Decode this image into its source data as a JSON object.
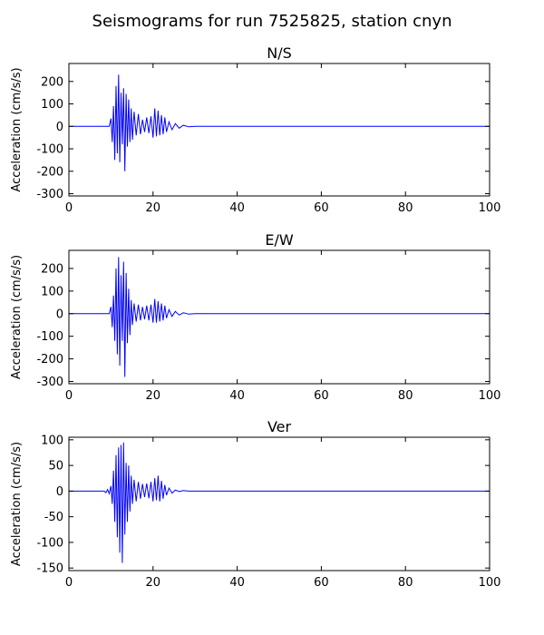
{
  "figure": {
    "title": "Seismograms for run 7525825, station cnyn"
  },
  "chart_data": [
    {
      "type": "line",
      "title": "N/S",
      "xlabel": "",
      "ylabel": "Acceleration (cm/s/s)",
      "xlim": [
        0,
        100
      ],
      "ylim": [
        -310,
        280
      ],
      "xticks": [
        0,
        20,
        40,
        60,
        80,
        100
      ],
      "yticks": [
        -300,
        -200,
        -100,
        0,
        100,
        200
      ],
      "color": "#0000ff",
      "grid": false,
      "series": [
        {
          "x": [
            0,
            9.6,
            10.0,
            10.3,
            10.6,
            10.9,
            11.2,
            11.5,
            11.8,
            12.1,
            12.4,
            12.7,
            13.0,
            13.3,
            13.6,
            13.9,
            14.2,
            14.5,
            14.8,
            15.1,
            15.5,
            16.0,
            16.5,
            17.0,
            17.5,
            18.0,
            18.5,
            19.0,
            19.5,
            20.0,
            20.4,
            20.8,
            21.2,
            21.6,
            22.0,
            22.4,
            22.8,
            23.2,
            23.8,
            24.5,
            25.3,
            26.2,
            27.2,
            28.5,
            30,
            100
          ],
          "y": [
            0,
            0,
            35,
            -70,
            90,
            -150,
            180,
            -120,
            230,
            -160,
            150,
            -80,
            170,
            -200,
            145,
            -90,
            120,
            -70,
            80,
            -60,
            65,
            -40,
            55,
            -35,
            30,
            -25,
            40,
            -30,
            45,
            -50,
            80,
            -45,
            70,
            -40,
            50,
            -35,
            40,
            -25,
            20,
            -15,
            12,
            -8,
            5,
            -2,
            0,
            0
          ]
        }
      ]
    },
    {
      "type": "line",
      "title": "E/W",
      "xlabel": "",
      "ylabel": "Acceleration (cm/s/s)",
      "xlim": [
        0,
        100
      ],
      "ylim": [
        -310,
        280
      ],
      "xticks": [
        0,
        20,
        40,
        60,
        80,
        100
      ],
      "yticks": [
        -300,
        -200,
        -100,
        0,
        100,
        200
      ],
      "color": "#0000ff",
      "grid": false,
      "series": [
        {
          "x": [
            0,
            9.6,
            10.0,
            10.3,
            10.6,
            10.9,
            11.2,
            11.5,
            11.8,
            12.1,
            12.4,
            12.7,
            13.0,
            13.3,
            13.6,
            13.9,
            14.2,
            14.5,
            14.8,
            15.1,
            15.5,
            16.0,
            16.5,
            17.0,
            17.5,
            18.0,
            18.5,
            19.0,
            19.5,
            20.0,
            20.4,
            20.8,
            21.2,
            21.6,
            22.0,
            22.4,
            22.8,
            23.2,
            23.8,
            24.5,
            25.3,
            26.2,
            27.2,
            28.5,
            30,
            100
          ],
          "y": [
            0,
            0,
            30,
            -60,
            80,
            -120,
            200,
            -180,
            250,
            -230,
            170,
            -120,
            230,
            -280,
            180,
            -130,
            110,
            -95,
            60,
            -50,
            45,
            -35,
            40,
            -30,
            30,
            -25,
            35,
            -30,
            40,
            -40,
            65,
            -40,
            55,
            -35,
            45,
            -30,
            35,
            -20,
            18,
            -12,
            10,
            -6,
            4,
            -2,
            0,
            0
          ]
        }
      ]
    },
    {
      "type": "line",
      "title": "Ver",
      "xlabel": "",
      "ylabel": "Acceleration (cm/s/s)",
      "xlim": [
        0,
        100
      ],
      "ylim": [
        -155,
        105
      ],
      "xticks": [
        0,
        20,
        40,
        60,
        80,
        100
      ],
      "yticks": [
        -150,
        -100,
        -50,
        0,
        50,
        100
      ],
      "color": "#0000ff",
      "grid": false,
      "series": [
        {
          "x": [
            0,
            8.4,
            8.8,
            9.2,
            9.6,
            10.0,
            10.3,
            10.6,
            10.9,
            11.2,
            11.5,
            11.8,
            12.1,
            12.4,
            12.7,
            13.0,
            13.3,
            13.6,
            13.9,
            14.2,
            14.5,
            14.8,
            15.1,
            15.5,
            16.0,
            16.5,
            17.0,
            17.5,
            18.0,
            18.5,
            19.0,
            19.5,
            20.0,
            20.4,
            20.8,
            21.2,
            21.6,
            22.0,
            22.4,
            22.8,
            23.2,
            23.8,
            24.5,
            25.3,
            26.2,
            27.2,
            28.5,
            30,
            100
          ],
          "y": [
            0,
            0,
            -3,
            3,
            -5,
            10,
            -25,
            40,
            -60,
            70,
            -90,
            85,
            -120,
            90,
            -140,
            95,
            -85,
            55,
            -60,
            50,
            -40,
            30,
            -25,
            22,
            -20,
            18,
            -15,
            14,
            -12,
            15,
            -14,
            18,
            -20,
            25,
            -18,
            30,
            -20,
            20,
            -15,
            12,
            -8,
            6,
            -4,
            2,
            -1,
            1,
            0,
            0,
            0
          ]
        }
      ]
    }
  ]
}
